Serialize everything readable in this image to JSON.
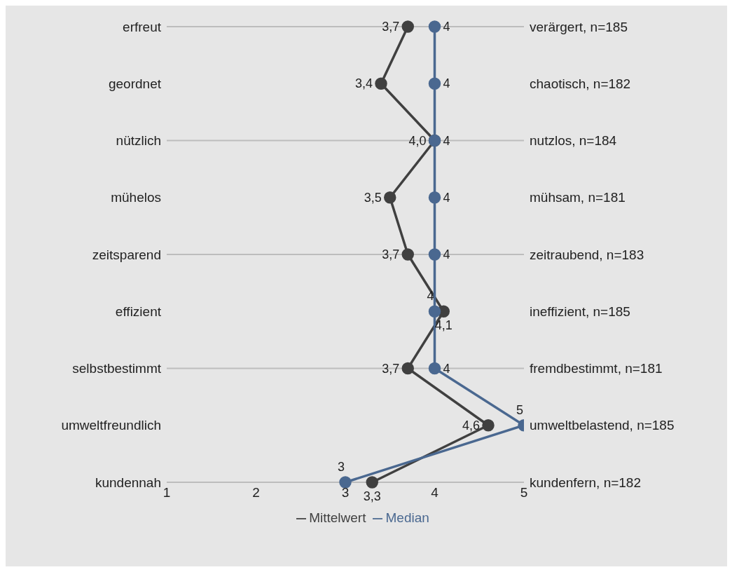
{
  "chart_data": {
    "type": "line",
    "orientation": "horizontal",
    "categories": [
      "erfreut",
      "geordnet",
      "nützlich",
      "mühelos",
      "zeitsparend",
      "effizient",
      "selbstbestimmt",
      "umweltfreundlich",
      "kundennah"
    ],
    "y2_categories": [
      "verärgert, n=185",
      "chaotisch, n=182",
      "nutzlos, n=184",
      "mühsam, n=181",
      "zeitraubend, n=183",
      "ineffizient, n=185",
      "fremdbestimmt, n=181",
      "umweltbelastend, n=185",
      "kundenfern, n=182"
    ],
    "series": [
      {
        "name": "Mittelwert",
        "color": "#404040",
        "values": [
          3.7,
          3.4,
          4.0,
          3.5,
          3.7,
          4.1,
          3.7,
          4.6,
          3.3
        ],
        "value_labels": [
          "3,7",
          "3,4",
          "4,0",
          "3,5",
          "3,7",
          "4,1",
          "3,7",
          "4,6",
          "3,3"
        ]
      },
      {
        "name": "Median",
        "color": "#4a6890",
        "values": [
          4,
          4,
          4,
          4,
          4,
          4,
          4,
          5,
          3
        ],
        "value_labels": [
          "4",
          "4",
          "4",
          "4",
          "4",
          "4",
          "4",
          "5",
          "3"
        ]
      }
    ],
    "xlim": [
      1,
      5
    ],
    "xticks": [
      1,
      2,
      3,
      4,
      5
    ],
    "grid": "y",
    "legend": "bottom",
    "marker": "circle",
    "line_style": "solid"
  }
}
